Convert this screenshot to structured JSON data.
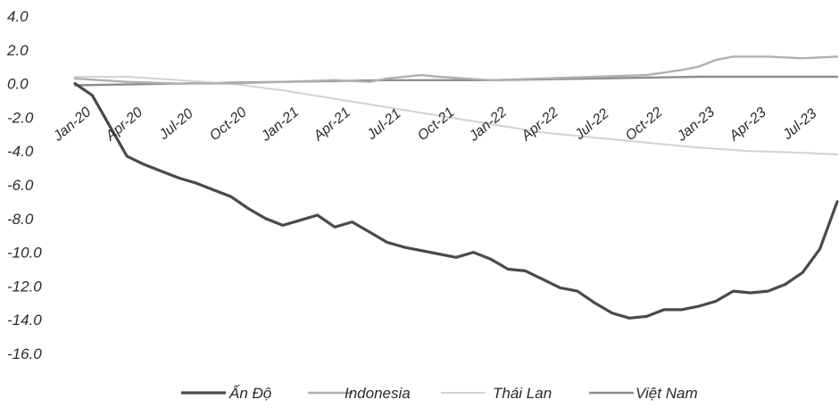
{
  "chart_data": {
    "type": "line",
    "title": "",
    "xlabel": "",
    "ylabel": "",
    "ylim": [
      -16,
      4
    ],
    "y_ticks": [
      "4.0",
      "2.0",
      "0.0",
      "-2.0",
      "-4.0",
      "-6.0",
      "-8.0",
      "-10.0",
      "-12.0",
      "-14.0",
      "-16.0"
    ],
    "x_ticks": [
      "Jan-20",
      "Apr-20",
      "Jul-20",
      "Oct-20",
      "Jan-21",
      "Apr-21",
      "Jul-21",
      "Oct-21",
      "Jan-22",
      "Apr-22",
      "Jul-22",
      "Oct-22",
      "Jan-23",
      "Apr-23",
      "Jul-23"
    ],
    "x_range": [
      "2020-01",
      "2023-09"
    ],
    "grid": false,
    "legend_position": "bottom",
    "series": [
      {
        "name": "Ấn Độ",
        "color": "#4a4a4a",
        "points": [
          [
            "2020-01",
            0.0
          ],
          [
            "2020-02",
            -0.7
          ],
          [
            "2020-03",
            -2.5
          ],
          [
            "2020-04",
            -4.3
          ],
          [
            "2020-05",
            -4.8
          ],
          [
            "2020-06",
            -5.2
          ],
          [
            "2020-07",
            -5.6
          ],
          [
            "2020-08",
            -5.9
          ],
          [
            "2020-09",
            -6.3
          ],
          [
            "2020-10",
            -6.7
          ],
          [
            "2020-11",
            -7.4
          ],
          [
            "2020-12",
            -8.0
          ],
          [
            "2021-01",
            -8.4
          ],
          [
            "2021-02",
            -8.1
          ],
          [
            "2021-03",
            -7.8
          ],
          [
            "2021-04",
            -8.5
          ],
          [
            "2021-05",
            -8.2
          ],
          [
            "2021-06",
            -8.8
          ],
          [
            "2021-07",
            -9.4
          ],
          [
            "2021-08",
            -9.7
          ],
          [
            "2021-09",
            -9.9
          ],
          [
            "2021-10",
            -10.1
          ],
          [
            "2021-11",
            -10.3
          ],
          [
            "2021-12",
            -10.0
          ],
          [
            "2022-01",
            -10.4
          ],
          [
            "2022-02",
            -11.0
          ],
          [
            "2022-03",
            -11.1
          ],
          [
            "2022-04",
            -11.6
          ],
          [
            "2022-05",
            -12.1
          ],
          [
            "2022-06",
            -12.3
          ],
          [
            "2022-07",
            -13.0
          ],
          [
            "2022-08",
            -13.6
          ],
          [
            "2022-09",
            -13.9
          ],
          [
            "2022-10",
            -13.8
          ],
          [
            "2022-11",
            -13.4
          ],
          [
            "2022-12",
            -13.4
          ],
          [
            "2023-01",
            -13.2
          ],
          [
            "2023-02",
            -12.9
          ],
          [
            "2023-03",
            -12.3
          ],
          [
            "2023-04",
            -12.4
          ],
          [
            "2023-05",
            -12.3
          ],
          [
            "2023-06",
            -11.9
          ],
          [
            "2023-07",
            -11.2
          ],
          [
            "2023-08",
            -9.8
          ],
          [
            "2023-09",
            -7.0
          ]
        ]
      },
      {
        "name": "Indonesia",
        "color": "#b0b0b0",
        "points": [
          [
            "2020-01",
            0.3
          ],
          [
            "2020-04",
            0.1
          ],
          [
            "2020-07",
            0.0
          ],
          [
            "2020-10",
            0.0
          ],
          [
            "2021-01",
            0.1
          ],
          [
            "2021-04",
            0.2
          ],
          [
            "2021-06",
            0.1
          ],
          [
            "2021-07",
            0.3
          ],
          [
            "2021-09",
            0.5
          ],
          [
            "2021-10",
            0.4
          ],
          [
            "2022-01",
            0.2
          ],
          [
            "2022-04",
            0.3
          ],
          [
            "2022-07",
            0.4
          ],
          [
            "2022-10",
            0.5
          ],
          [
            "2022-12",
            0.8
          ],
          [
            "2023-01",
            1.0
          ],
          [
            "2023-02",
            1.4
          ],
          [
            "2023-03",
            1.6
          ],
          [
            "2023-05",
            1.6
          ],
          [
            "2023-07",
            1.5
          ],
          [
            "2023-09",
            1.6
          ]
        ]
      },
      {
        "name": "Thái Lan",
        "color": "#d2d2d2",
        "points": [
          [
            "2020-01",
            0.4
          ],
          [
            "2020-04",
            0.4
          ],
          [
            "2020-07",
            0.2
          ],
          [
            "2020-10",
            0.0
          ],
          [
            "2021-01",
            -0.4
          ],
          [
            "2021-04",
            -0.9
          ],
          [
            "2021-07",
            -1.4
          ],
          [
            "2021-10",
            -1.9
          ],
          [
            "2022-01",
            -2.4
          ],
          [
            "2022-04",
            -2.9
          ],
          [
            "2022-07",
            -3.2
          ],
          [
            "2022-10",
            -3.5
          ],
          [
            "2023-01",
            -3.8
          ],
          [
            "2023-04",
            -4.0
          ],
          [
            "2023-07",
            -4.1
          ],
          [
            "2023-09",
            -4.2
          ]
        ]
      },
      {
        "name": "Việt Nam",
        "color": "#8c8c8c",
        "points": [
          [
            "2020-01",
            -0.1
          ],
          [
            "2020-07",
            0.0
          ],
          [
            "2021-01",
            0.1
          ],
          [
            "2021-07",
            0.2
          ],
          [
            "2022-01",
            0.2
          ],
          [
            "2022-07",
            0.3
          ],
          [
            "2023-01",
            0.4
          ],
          [
            "2023-09",
            0.4
          ]
        ]
      }
    ]
  }
}
